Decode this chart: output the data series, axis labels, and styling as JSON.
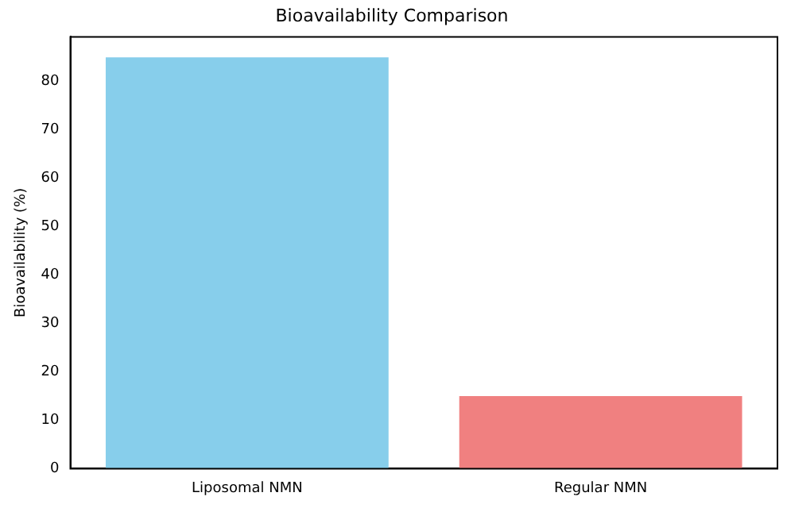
{
  "chart_data": {
    "type": "bar",
    "title": "Bioavailability Comparison",
    "ylabel": "Bioavailability (%)",
    "categories": [
      "Liposomal NMN",
      "Regular NMN"
    ],
    "values": [
      85,
      15
    ],
    "colors": [
      "#87ceeb",
      "#f08080"
    ],
    "ylim": [
      0,
      89.25
    ],
    "yticks": [
      0,
      10,
      20,
      30,
      40,
      50,
      60,
      70,
      80
    ],
    "grid": false,
    "legend": false
  }
}
